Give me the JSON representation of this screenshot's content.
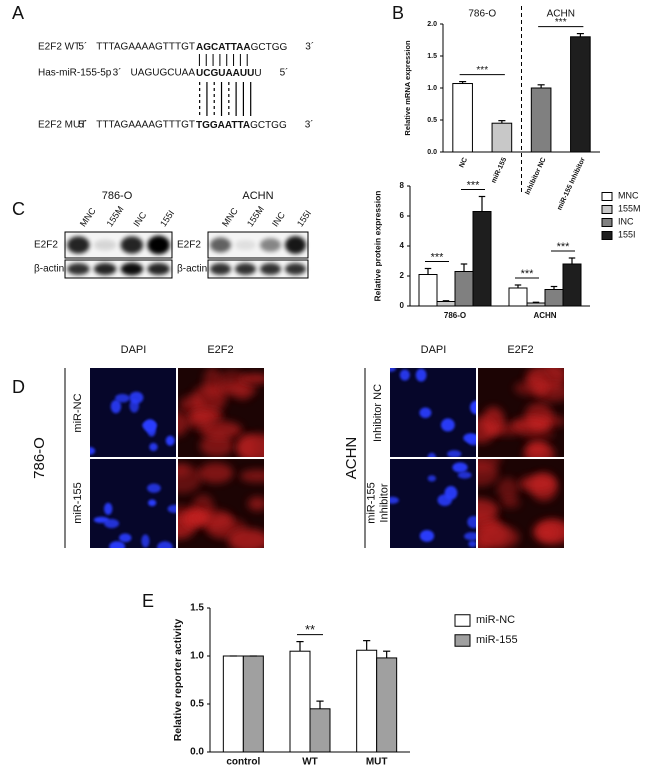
{
  "panel_labels": [
    "A",
    "B",
    "C",
    "D",
    "E"
  ],
  "sequence": {
    "rows": [
      {
        "name": "E2F2 WT",
        "end5": "5´",
        "pre": "TTTAGAAAAGTTTGT",
        "bold": "AGCATTAA",
        "post": "GCTGG",
        "end3": "3´"
      },
      {
        "name": "Has-miR-155-5p",
        "end5": "3´",
        "pre": "UAGUGCUAA",
        "bold": "UCGUAAUU",
        "post": "U",
        "end3": "5´"
      },
      {
        "name": "E2F2 MUT",
        "end5": "5´",
        "pre": "TTTAGAAAAGTTTGT",
        "bold": "TGGAATTA",
        "post": "GCTGG",
        "end3": "3´"
      }
    ]
  },
  "blots": {
    "groups": [
      {
        "title": "786-O",
        "lanes": [
          "MNC",
          "155M",
          "INC",
          "155I"
        ]
      },
      {
        "title": "ACHN",
        "lanes": [
          "MNC",
          "155M",
          "INC",
          "155I"
        ]
      }
    ],
    "rows": [
      "E2F2",
      "β-actin"
    ]
  },
  "imaging": {
    "panels": [
      {
        "cell_line": "786-O",
        "channels": [
          "DAPI",
          "E2F2"
        ],
        "rows": [
          [
            "miR-NC"
          ],
          [
            "miR-155"
          ]
        ]
      },
      {
        "cell_line": "ACHN",
        "channels": [
          "DAPI",
          "E2F2"
        ],
        "rows": [
          [
            "Inhibitor NC"
          ],
          [
            "miR-155",
            "Inhibitor"
          ]
        ]
      }
    ]
  },
  "chart_data": [
    {
      "type": "bar",
      "groups": [
        "786-O",
        "ACHN"
      ],
      "categories": [
        "NC",
        "miR-155",
        "Inhibitor NC",
        "miR-155 Inhibitor"
      ],
      "values": [
        1.07,
        0.45,
        1.0,
        1.8
      ],
      "errors": [
        0.03,
        0.04,
        0.05,
        0.05
      ],
      "colors": [
        "#ffffff",
        "#c8c8c8",
        "#808080",
        "#1e1e1e"
      ],
      "ylabel": "Relative mRNA expression",
      "ylim": [
        0,
        2
      ],
      "yticks": [
        {
          "value": 0,
          "label": "0.0"
        },
        {
          "value": 0.5,
          "label": "0.5"
        },
        {
          "value": 1,
          "label": "1.0"
        },
        {
          "value": 1.5,
          "label": "1.5"
        },
        {
          "value": 2,
          "label": "2.0"
        }
      ],
      "annotations": [
        "***",
        "***"
      ]
    },
    {
      "type": "bar",
      "categories": [
        "786-O",
        "ACHN"
      ],
      "series": [
        {
          "name": "MNC",
          "color": "#ffffff",
          "values": [
            2.1,
            1.2
          ],
          "errors": [
            0.4,
            0.2
          ]
        },
        {
          "name": "155M",
          "color": "#c8c8c8",
          "values": [
            0.3,
            0.2
          ],
          "errors": [
            0.05,
            0.05
          ]
        },
        {
          "name": "INC",
          "color": "#808080",
          "values": [
            2.3,
            1.1
          ],
          "errors": [
            0.5,
            0.2
          ]
        },
        {
          "name": "155I",
          "color": "#1e1e1e",
          "values": [
            6.3,
            2.8
          ],
          "errors": [
            1.0,
            0.4
          ]
        }
      ],
      "ylabel": "Relative protein expression",
      "ylim": [
        0,
        8
      ],
      "yticks": [
        0,
        2,
        4,
        6,
        8
      ],
      "annotations": [
        "***",
        "***",
        "***",
        "***"
      ],
      "legend": "right"
    },
    {
      "type": "bar",
      "categories": [
        "control",
        "WT",
        "MUT"
      ],
      "series": [
        {
          "name": "miR-NC",
          "color": "#ffffff",
          "values": [
            1.0,
            1.05,
            1.06
          ],
          "errors": [
            0,
            0.1,
            0.1
          ]
        },
        {
          "name": "miR-155",
          "color": "#a0a0a0",
          "values": [
            1.0,
            0.45,
            0.98
          ],
          "errors": [
            0,
            0.08,
            0.07
          ]
        }
      ],
      "ylabel": "Relative reporter activity",
      "ylim": [
        0,
        1.5
      ],
      "yticks": [
        {
          "value": 0,
          "label": "0.0"
        },
        {
          "value": 0.5,
          "label": "0.5"
        },
        {
          "value": 1,
          "label": "1.0"
        },
        {
          "value": 1.5,
          "label": "1.5"
        }
      ],
      "annotations": [
        "**"
      ],
      "legend": "top-right"
    }
  ]
}
